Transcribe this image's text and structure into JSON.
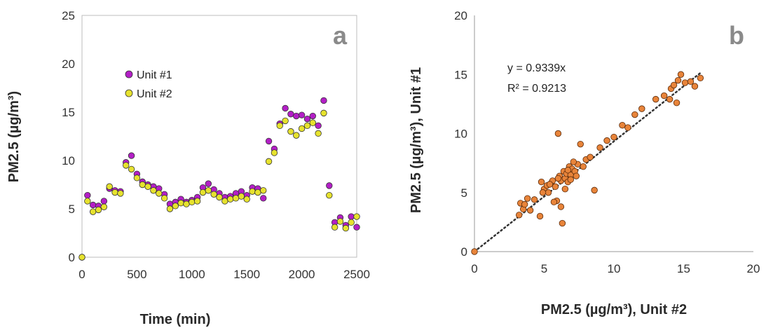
{
  "chart_data": [
    {
      "type": "scatter",
      "panel_label": "a",
      "xlabel": "Time (min)",
      "ylabel": "PM2.5 (µg/m³)",
      "xlim": [
        0,
        2500
      ],
      "ylim": [
        0,
        25
      ],
      "xticks": [
        "0",
        "500",
        "1000",
        "1500",
        "2000",
        "2500"
      ],
      "yticks": [
        "0",
        "5",
        "10",
        "15",
        "20",
        "25"
      ],
      "grid": false,
      "legend_position": "upper-left",
      "series": [
        {
          "name": "Unit #1",
          "color": "#b31fc6",
          "x": [
            0,
            50,
            100,
            150,
            200,
            250,
            300,
            350,
            400,
            450,
            500,
            550,
            600,
            650,
            700,
            750,
            800,
            850,
            900,
            950,
            1000,
            1050,
            1100,
            1150,
            1200,
            1250,
            1300,
            1350,
            1400,
            1450,
            1500,
            1550,
            1600,
            1650,
            1700,
            1750,
            1800,
            1850,
            1900,
            1950,
            2000,
            2050,
            2100,
            2150,
            2200,
            2250,
            2300,
            2350,
            2400,
            2450,
            2500
          ],
          "y": [
            0,
            6.4,
            5.4,
            5.3,
            5.8,
            7.1,
            6.9,
            6.8,
            9.8,
            10.5,
            8.6,
            7.8,
            7.5,
            7.3,
            7.1,
            6.5,
            5.5,
            5.7,
            6.0,
            5.7,
            5.9,
            6.2,
            7.2,
            7.6,
            7.0,
            6.6,
            6.2,
            6.3,
            6.6,
            6.8,
            6.4,
            7.2,
            7.1,
            6.1,
            12.0,
            11.2,
            13.8,
            15.4,
            14.8,
            14.6,
            14.7,
            14.3,
            14.6,
            13.6,
            16.2,
            7.4,
            3.6,
            4.1,
            3.3,
            4.2,
            3.1
          ]
        },
        {
          "name": "Unit #2",
          "color": "#e6e22e",
          "x": [
            0,
            50,
            100,
            150,
            200,
            250,
            300,
            350,
            400,
            450,
            500,
            550,
            600,
            650,
            700,
            750,
            800,
            850,
            900,
            950,
            1000,
            1050,
            1100,
            1150,
            1200,
            1250,
            1300,
            1350,
            1400,
            1450,
            1500,
            1550,
            1600,
            1650,
            1700,
            1750,
            1800,
            1850,
            1900,
            1950,
            2000,
            2050,
            2100,
            2150,
            2200,
            2250,
            2300,
            2350,
            2400,
            2450,
            2500
          ],
          "y": [
            0,
            5.8,
            4.7,
            4.9,
            5.2,
            7.3,
            6.7,
            6.6,
            9.5,
            9.1,
            8.2,
            7.5,
            7.3,
            6.9,
            6.6,
            6.1,
            5.0,
            5.3,
            5.6,
            5.5,
            5.7,
            5.8,
            6.7,
            6.9,
            6.5,
            6.2,
            5.8,
            6.0,
            6.1,
            6.3,
            6.0,
            6.8,
            6.7,
            6.9,
            9.9,
            10.8,
            13.6,
            14.1,
            13.0,
            12.6,
            13.3,
            13.6,
            13.9,
            12.8,
            14.9,
            6.4,
            3.1,
            3.7,
            3.0,
            3.6,
            4.2
          ]
        }
      ]
    },
    {
      "type": "scatter",
      "panel_label": "b",
      "xlabel": "PM2.5 (µg/m³), Unit #2",
      "ylabel": "PM2.5 (µg/m³), Unit #1",
      "xlim": [
        0,
        20
      ],
      "ylim": [
        0,
        20
      ],
      "xticks": [
        "0",
        "5",
        "10",
        "15",
        "20"
      ],
      "yticks": [
        "0",
        "5",
        "10",
        "15",
        "20"
      ],
      "grid": false,
      "equation": "y = 0.9339x",
      "r_squared": "R² = 0.9213",
      "trendline": {
        "slope": 0.9339,
        "x_range": [
          0,
          16.3
        ],
        "style": "dotted",
        "color": "#333333"
      },
      "series": [
        {
          "name": "",
          "color": "#e8843a",
          "x": [
            0,
            3.3,
            3.5,
            3.8,
            4.0,
            4.3,
            4.7,
            4.8,
            5.0,
            5.2,
            5.3,
            5.5,
            5.6,
            5.8,
            5.9,
            6.0,
            6.1,
            6.2,
            6.3,
            6.4,
            6.5,
            6.6,
            6.7,
            6.8,
            6.9,
            7.0,
            7.2,
            7.4,
            7.6,
            8.0,
            8.3,
            8.6,
            9.0,
            9.5,
            10.0,
            10.6,
            11.0,
            11.5,
            12.0,
            13.0,
            13.6,
            14.1,
            14.3,
            14.6,
            14.8,
            15.1,
            15.5,
            15.8,
            16.2,
            3.2,
            3.6,
            4.9,
            5.4,
            6.0,
            6.2,
            6.5,
            6.9,
            7.3,
            7.8,
            5.7,
            6.7,
            7.1,
            14.5,
            14.0
          ],
          "y": [
            0,
            4.1,
            3.6,
            4.5,
            3.5,
            4.4,
            3.0,
            5.9,
            5.3,
            5.6,
            5.0,
            5.8,
            6.0,
            5.5,
            4.3,
            10.0,
            6.4,
            6.0,
            2.4,
            6.8,
            6.2,
            6.6,
            5.9,
            7.2,
            6.5,
            7.0,
            6.8,
            7.4,
            9.1,
            7.8,
            8.0,
            5.2,
            8.8,
            9.4,
            9.7,
            10.7,
            10.5,
            11.6,
            12.1,
            12.9,
            13.2,
            13.8,
            14.1,
            14.5,
            15.0,
            14.3,
            14.4,
            14.0,
            14.7,
            3.1,
            4.0,
            5.0,
            5.7,
            6.2,
            3.8,
            5.3,
            6.1,
            6.4,
            7.2,
            4.2,
            6.9,
            7.6,
            12.6,
            12.9
          ]
        }
      ]
    }
  ]
}
